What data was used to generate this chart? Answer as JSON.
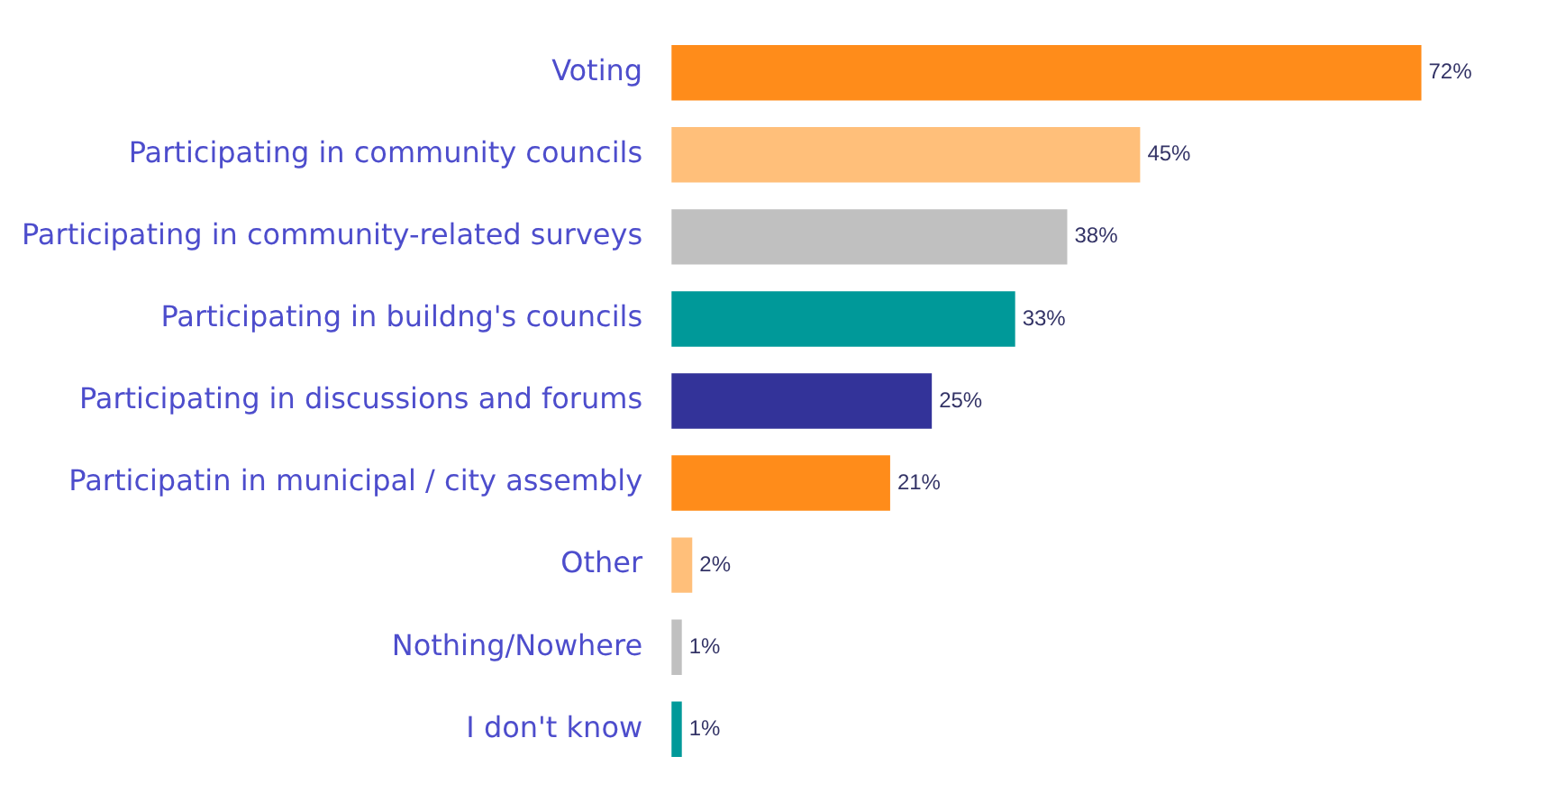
{
  "chart_data": {
    "type": "bar",
    "orientation": "horizontal",
    "categories": [
      "Voting",
      "Participating in community councils",
      "Participating in community-related surveys",
      "Participating in buildng's councils",
      "Participating in discussions and forums",
      "Participatin in municipal / city assembly",
      "Other",
      "Nothing/Nowhere",
      "I don't know"
    ],
    "values": [
      72,
      45,
      38,
      33,
      25,
      21,
      2,
      1,
      1
    ],
    "colors": [
      "#ff8c1a",
      "#ffbf7a",
      "#c0c0c0",
      "#009999",
      "#333399",
      "#ff8c1a",
      "#ffbf7a",
      "#c0c0c0",
      "#009999"
    ],
    "value_labels": [
      "72%",
      "45%",
      "38%",
      "33%",
      "25%",
      "21%",
      "2%",
      "1%",
      "1%"
    ],
    "legend": false
  }
}
